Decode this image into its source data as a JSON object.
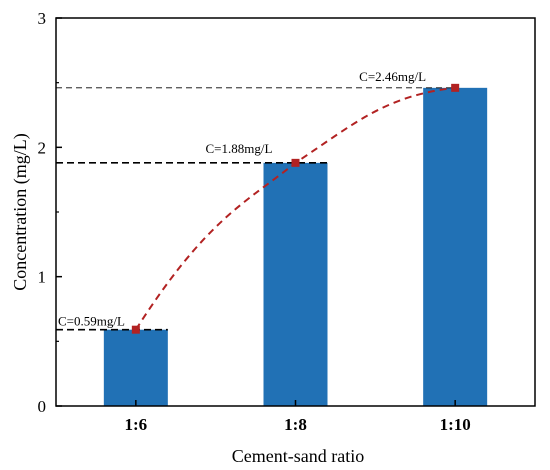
{
  "chart_data": {
    "type": "bar",
    "categories": [
      "1:6",
      "1:8",
      "1:10"
    ],
    "values": [
      0.59,
      1.88,
      2.46
    ],
    "xlabel": "Cement-sand ratio",
    "ylabel": "Concentration (mg/L)",
    "ylim": [
      0,
      3
    ],
    "yticks": [
      0,
      1,
      2,
      3
    ],
    "grid": false,
    "annotations": [
      "C=0.59mg/L",
      "C=1.88mg/L",
      "C=2.46mg/L"
    ],
    "overlay_line": {
      "style": "dashed",
      "marker": "square",
      "values": [
        0.59,
        1.88,
        2.46
      ]
    },
    "colors": {
      "bar": "#2171b5",
      "line": "#b22222",
      "marker": "#b22222",
      "reference_line": "#000000"
    }
  }
}
